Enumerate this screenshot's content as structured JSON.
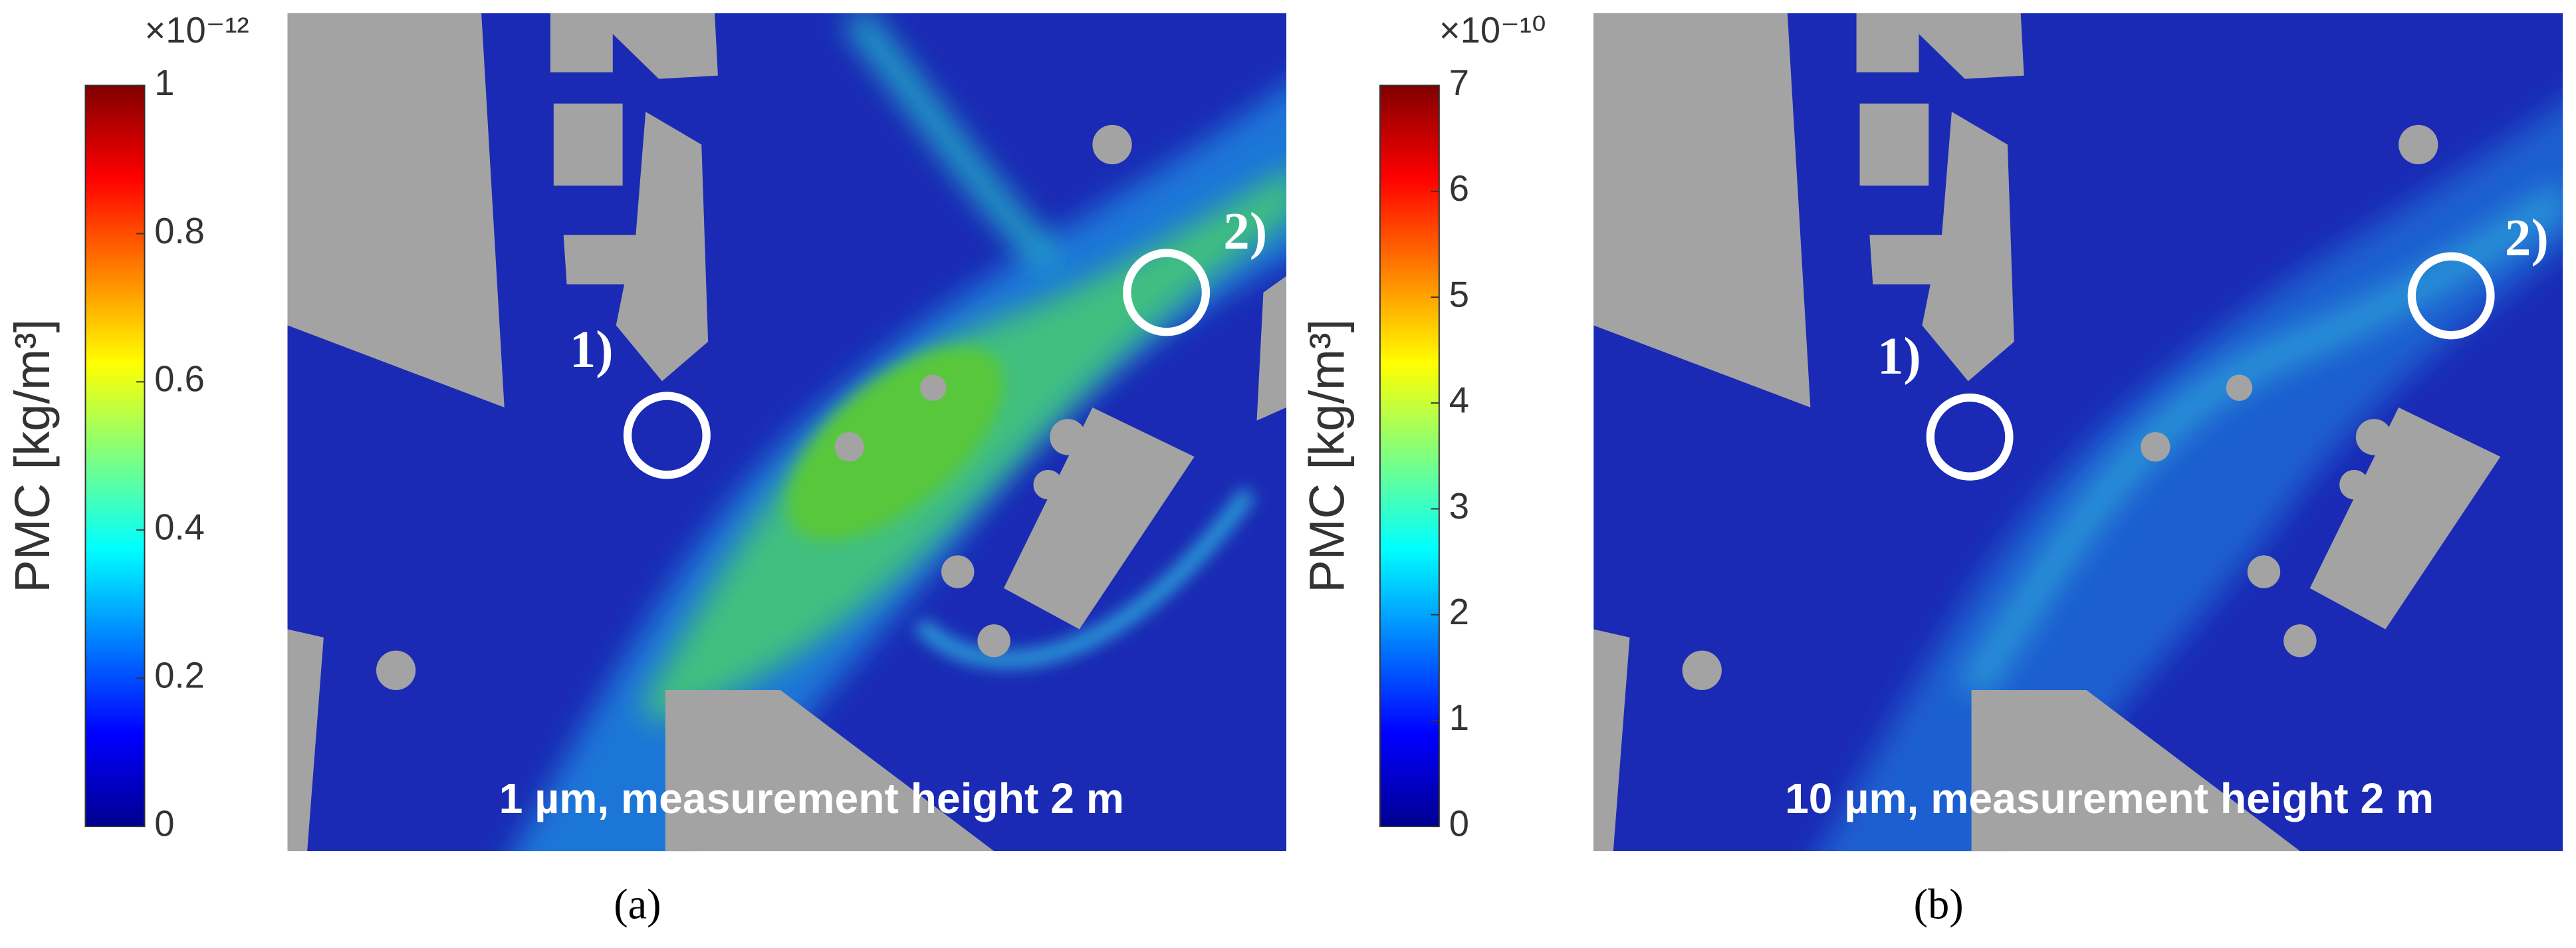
{
  "chart_data": [
    {
      "type": "heatmap",
      "colormap": "jet",
      "colorbar_label": "PMC [kg/m³]",
      "colorbar_exponent": "×10⁻¹²",
      "clim": [
        0,
        1
      ],
      "cticks": [
        0,
        0.2,
        0.4,
        0.6,
        0.8,
        1
      ],
      "annotations": [
        "1)",
        "2)",
        "1 µm, measurement height 2 m"
      ],
      "caption": "(a)"
    },
    {
      "type": "heatmap",
      "colormap": "jet",
      "colorbar_label": "PMC [kg/m³]",
      "colorbar_exponent": "×10⁻¹⁰",
      "clim": [
        0,
        7
      ],
      "cticks": [
        0,
        1,
        2,
        3,
        4,
        5,
        6,
        7
      ],
      "annotations": [
        "1)",
        "2)",
        "10 µm, measurement height 2 m"
      ],
      "caption": "(b)"
    }
  ]
}
